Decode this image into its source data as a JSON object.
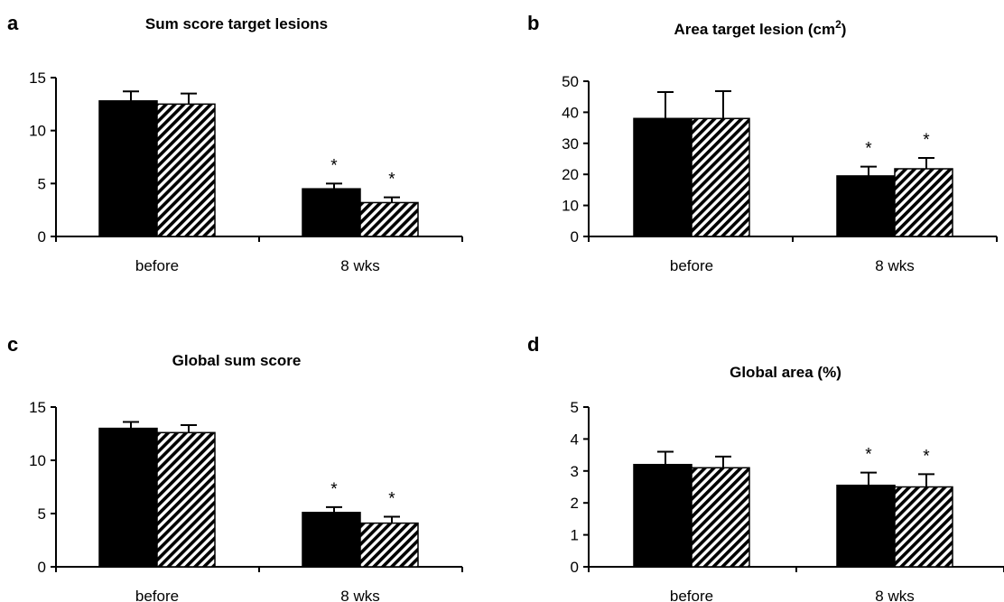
{
  "colors": {
    "series_1": "#000000",
    "series_2_hatch": "#000000",
    "axis": "#000000"
  },
  "chart_data": [
    {
      "panel": "a",
      "type": "bar",
      "title": "Sum score target lesions",
      "title_superscript": "",
      "title_suffix": "",
      "categories": [
        "before",
        "8 wks"
      ],
      "yticks": [
        "0",
        "5",
        "10",
        "15"
      ],
      "ylim": [
        0,
        15
      ],
      "xlabel": "",
      "ylabel": "",
      "grid": false,
      "series": [
        {
          "fill": "solid-black",
          "values": [
            12.8,
            4.5
          ],
          "errors": [
            0.9,
            0.5
          ],
          "significance": [
            "",
            "*"
          ]
        },
        {
          "fill": "diagonal-hatch",
          "values": [
            12.5,
            3.2
          ],
          "errors": [
            1.0,
            0.5
          ],
          "significance": [
            "",
            "*"
          ]
        }
      ]
    },
    {
      "panel": "b",
      "type": "bar",
      "title": "Area target lesion (cm",
      "title_superscript": "2",
      "title_suffix": ")",
      "categories": [
        "before",
        "8 wks"
      ],
      "yticks": [
        "0",
        "10",
        "20",
        "30",
        "40",
        "50"
      ],
      "ylim": [
        0,
        50
      ],
      "xlabel": "",
      "ylabel": "",
      "grid": false,
      "series": [
        {
          "fill": "solid-black",
          "values": [
            38,
            19.5
          ],
          "errors": [
            8.5,
            3
          ],
          "significance": [
            "",
            "*"
          ]
        },
        {
          "fill": "diagonal-hatch",
          "values": [
            38,
            21.8
          ],
          "errors": [
            8.8,
            3.5
          ],
          "significance": [
            "",
            "*"
          ]
        }
      ]
    },
    {
      "panel": "c",
      "type": "bar",
      "title": "Global sum score",
      "title_superscript": "",
      "title_suffix": "",
      "categories": [
        "before",
        "8 wks"
      ],
      "yticks": [
        "0",
        "5",
        "10",
        "15"
      ],
      "ylim": [
        0,
        15
      ],
      "xlabel": "",
      "ylabel": "",
      "grid": false,
      "series": [
        {
          "fill": "solid-black",
          "values": [
            13.0,
            5.1
          ],
          "errors": [
            0.6,
            0.5
          ],
          "significance": [
            "",
            "*"
          ]
        },
        {
          "fill": "diagonal-hatch",
          "values": [
            12.6,
            4.1
          ],
          "errors": [
            0.7,
            0.6
          ],
          "significance": [
            "",
            "*"
          ]
        }
      ]
    },
    {
      "panel": "d",
      "type": "bar",
      "title": "Global area (%)",
      "title_superscript": "",
      "title_suffix": "",
      "categories": [
        "before",
        "8 wks"
      ],
      "yticks": [
        "0",
        "1",
        "2",
        "3",
        "4",
        "5"
      ],
      "ylim": [
        0,
        5
      ],
      "xlabel": "",
      "ylabel": "",
      "grid": false,
      "series": [
        {
          "fill": "solid-black",
          "values": [
            3.2,
            2.55
          ],
          "errors": [
            0.4,
            0.4
          ],
          "significance": [
            "",
            "*"
          ]
        },
        {
          "fill": "diagonal-hatch",
          "values": [
            3.1,
            2.5
          ],
          "errors": [
            0.35,
            0.4
          ],
          "significance": [
            "",
            "*"
          ]
        }
      ]
    }
  ]
}
